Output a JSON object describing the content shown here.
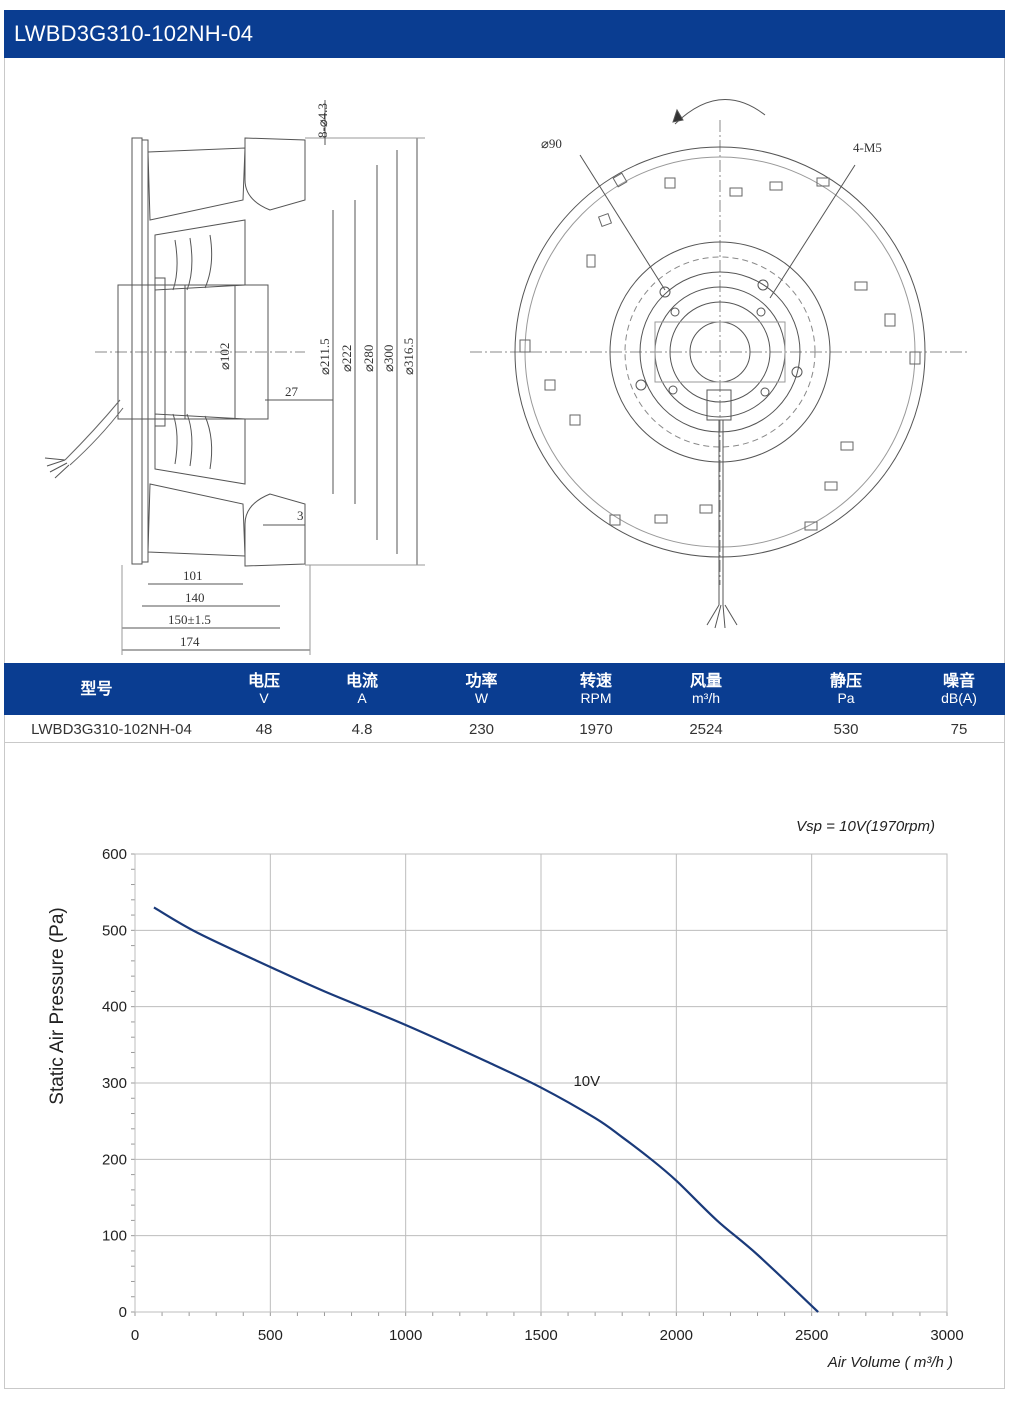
{
  "title": "LWBD3G310-102NH-04",
  "drawing": {
    "side_labels": {
      "holes": "8-⌀4.3",
      "d102": "⌀102",
      "d211": "⌀211.5",
      "d222": "⌀222",
      "d280": "⌀280",
      "d300": "⌀300",
      "d316": "⌀316.5",
      "dim27": "27",
      "dim3": "3",
      "dim101": "101",
      "dim140": "140",
      "dim150": "150±1.5",
      "dim174": "174"
    },
    "front_labels": {
      "d90": "⌀90",
      "m5": "4-M5"
    }
  },
  "specs": {
    "columns": [
      {
        "label": "型号",
        "unit": ""
      },
      {
        "label": "电压",
        "unit": "V"
      },
      {
        "label": "电流",
        "unit": "A"
      },
      {
        "label": "功率",
        "unit": "W"
      },
      {
        "label": "转速",
        "unit": "RPM"
      },
      {
        "label": "风量",
        "unit": "m³/h"
      },
      {
        "label": "静压",
        "unit": "Pa"
      },
      {
        "label": "噪音",
        "unit": "dB(A)"
      }
    ],
    "row": [
      "LWBD3G310-102NH-04",
      "48",
      "4.8",
      "230",
      "1970",
      "2524",
      "530",
      "75"
    ]
  },
  "chart_data": {
    "type": "line",
    "title": "Vsp = 10V(1970rpm)",
    "xlabel": "Air Volume ( m³/h )",
    "ylabel": "Static Air Pressure  (Pa)",
    "xlim": [
      0,
      3000
    ],
    "ylim": [
      0,
      600
    ],
    "xticks": [
      "0",
      "500",
      "1000",
      "1500",
      "2000",
      "2500",
      "3000"
    ],
    "yticks": [
      "0",
      "100",
      "200",
      "300",
      "400",
      "500",
      "600"
    ],
    "grid": true,
    "series": [
      {
        "name": "10V",
        "color": "#1a3a7a",
        "x": [
          70,
          230,
          500,
          700,
          1000,
          1300,
          1500,
          1700,
          1800,
          1900,
          2000,
          2150,
          2300,
          2524
        ],
        "y": [
          530,
          497,
          452,
          420,
          376,
          328,
          294,
          254,
          229,
          202,
          172,
          120,
          75,
          0
        ]
      }
    ]
  }
}
